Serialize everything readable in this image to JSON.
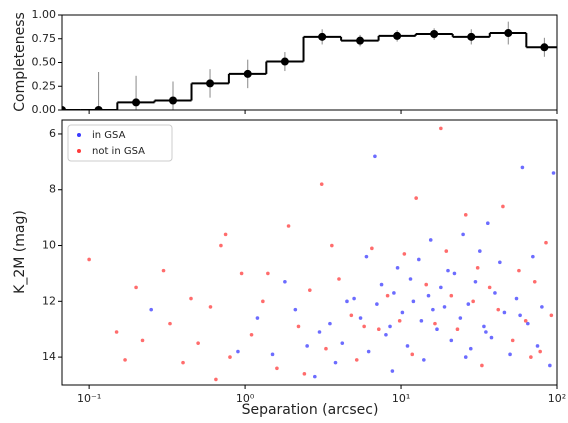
{
  "chart_data": [
    {
      "type": "step",
      "y_label": "Completeness",
      "x": [
        0.067,
        0.115,
        0.2,
        0.345,
        0.596,
        1.04,
        1.8,
        3.12,
        5.46,
        9.44,
        16.3,
        28.2,
        48.7,
        83
      ],
      "values": [
        0.0,
        0.0,
        0.08,
        0.1,
        0.28,
        0.38,
        0.51,
        0.77,
        0.73,
        0.78,
        0.8,
        0.77,
        0.81,
        0.66
      ],
      "errors": [
        0.02,
        0.4,
        0.28,
        0.2,
        0.15,
        0.15,
        0.1,
        0.08,
        0.06,
        0.06,
        0.06,
        0.08,
        0.12,
        0.1
      ],
      "color": "#000000",
      "log_x": true,
      "xlim": [
        0.067,
        100
      ],
      "xticks": [
        0.1,
        1,
        10,
        100
      ],
      "ylim": [
        0,
        1
      ],
      "yticks": [
        {
          "value": 0,
          "label": "0.00"
        },
        {
          "value": 0.25,
          "label": "0.25"
        },
        {
          "value": 0.5,
          "label": "0.50"
        },
        {
          "value": 0.75,
          "label": "0.75"
        },
        {
          "value": 1,
          "label": "1.00"
        }
      ]
    },
    {
      "type": "scatter",
      "x_label": "Separation (arcsec)",
      "y_label": "K_2M (mag)",
      "log_x": true,
      "legend": "upper left",
      "xlim": [
        0.067,
        100
      ],
      "xticks": [
        {
          "value": 0.1,
          "label": "10⁻¹"
        },
        {
          "value": 1,
          "label": "10⁰"
        },
        {
          "value": 10,
          "label": "10¹"
        },
        {
          "value": 100,
          "label": "10²"
        }
      ],
      "ylim": [
        15,
        5.5
      ],
      "yticks": [
        6,
        8,
        10,
        12,
        14
      ],
      "series": [
        {
          "name": "in GSA",
          "color": "#3b3bff",
          "x": [
            2.1,
            3.0,
            3.5,
            4.2,
            5.0,
            5.5,
            6.2,
            6.8,
            7.0,
            7.5,
            8.0,
            8.5,
            9.0,
            9.5,
            10.2,
            11,
            11.5,
            12,
            13,
            13.5,
            14,
            15,
            15.5,
            16,
            17,
            18,
            19,
            20,
            21,
            22,
            24,
            25,
            27,
            28,
            30,
            32,
            34,
            36,
            38,
            40,
            43,
            46,
            50,
            55,
            60,
            65,
            70,
            75,
            80,
            90,
            95,
            1.2,
            1.5,
            1.8,
            2.5,
            4.5,
            3.8,
            6.0,
            8.8,
            2.8,
            0.25,
            0.9,
            26,
            35,
            58
          ],
          "values": [
            12.3,
            13.1,
            12.8,
            13.5,
            11.9,
            12.6,
            13.8,
            6.8,
            12.1,
            11.4,
            13.2,
            12.9,
            11.7,
            10.8,
            12.4,
            13.6,
            11.2,
            12.0,
            10.5,
            12.7,
            14.1,
            11.8,
            9.8,
            12.3,
            13.0,
            11.5,
            12.2,
            10.9,
            13.4,
            11.0,
            12.6,
            9.6,
            12.1,
            13.7,
            11.3,
            10.2,
            12.9,
            9.2,
            13.3,
            11.7,
            10.6,
            12.4,
            13.9,
            11.9,
            7.2,
            12.8,
            10.4,
            13.6,
            12.2,
            14.3,
            7.4,
            12.6,
            13.9,
            11.3,
            13.6,
            12.0,
            14.2,
            10.4,
            14.5,
            14.7,
            12.3,
            13.8,
            14.0,
            13.1,
            12.5
          ]
        },
        {
          "name": "not in GSA",
          "color": "#ff3b3b",
          "x": [
            0.1,
            0.15,
            0.17,
            0.2,
            0.22,
            0.3,
            0.33,
            0.4,
            0.45,
            0.5,
            0.6,
            0.7,
            0.75,
            0.8,
            0.95,
            1.1,
            1.3,
            1.6,
            1.9,
            2.2,
            2.6,
            3.1,
            3.3,
            4.0,
            4.8,
            5.2,
            6.5,
            7.2,
            8.2,
            9.8,
            10.5,
            11.8,
            12.5,
            14.5,
            16.5,
            18,
            19.5,
            21,
            23,
            26,
            29,
            31,
            33,
            37,
            42,
            45,
            52,
            57,
            63,
            68,
            72,
            78,
            85,
            92,
            0.65,
            1.4,
            2.4,
            3.6,
            5.8
          ],
          "values": [
            10.5,
            13.1,
            14.1,
            11.5,
            13.4,
            10.9,
            12.8,
            14.2,
            11.9,
            13.5,
            12.2,
            10.0,
            9.6,
            14.0,
            11.0,
            13.2,
            12.0,
            14.4,
            9.3,
            12.9,
            11.6,
            7.8,
            13.7,
            11.2,
            12.5,
            14.1,
            10.1,
            13.0,
            11.8,
            12.7,
            10.3,
            13.9,
            8.3,
            11.4,
            12.8,
            5.8,
            10.2,
            11.8,
            13.0,
            8.9,
            12.0,
            10.8,
            14.3,
            11.5,
            12.3,
            8.6,
            13.4,
            10.9,
            12.7,
            14.0,
            11.3,
            13.8,
            9.9,
            12.5,
            14.8,
            11.0,
            14.6,
            10.0,
            12.9
          ]
        }
      ]
    }
  ]
}
